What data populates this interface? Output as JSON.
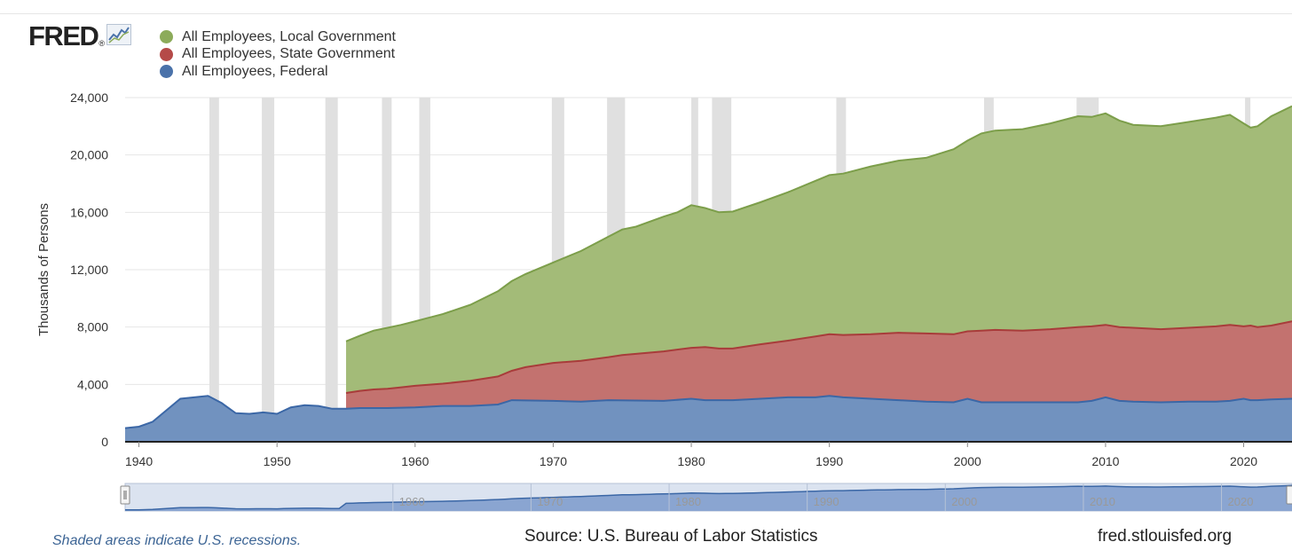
{
  "logo": {
    "text": "FRED",
    "icon": "fred-chart-icon"
  },
  "chart_data": {
    "type": "area",
    "stacked": true,
    "title": "",
    "ylabel": "Thousands of Persons",
    "xlabel": "",
    "xlim": [
      1939,
      2023.5
    ],
    "ylim": [
      0,
      24000
    ],
    "yticks": [
      "0",
      "4,000",
      "8,000",
      "12,000",
      "16,000",
      "20,000",
      "24,000"
    ],
    "ytick_values": [
      0,
      4000,
      8000,
      12000,
      16000,
      20000,
      24000
    ],
    "xticks": [
      "1940",
      "1950",
      "1960",
      "1970",
      "1980",
      "1990",
      "2000",
      "2010",
      "2020"
    ],
    "xtick_values": [
      1940,
      1950,
      1960,
      1970,
      1980,
      1990,
      2000,
      2010,
      2020
    ],
    "grid": true,
    "legend_position": "top-left",
    "series": [
      {
        "name": "All Employees, Local Government",
        "color": "#8cab5a",
        "cumulative_top": [
          [
            1955,
            7000
          ],
          [
            1956,
            7400
          ],
          [
            1957,
            7750
          ],
          [
            1958,
            7950
          ],
          [
            1959,
            8150
          ],
          [
            1960,
            8400
          ],
          [
            1962,
            8900
          ],
          [
            1964,
            9550
          ],
          [
            1966,
            10500
          ],
          [
            1967,
            11200
          ],
          [
            1968,
            11700
          ],
          [
            1970,
            12500
          ],
          [
            1972,
            13300
          ],
          [
            1974,
            14300
          ],
          [
            1975,
            14800
          ],
          [
            1976,
            15000
          ],
          [
            1978,
            15700
          ],
          [
            1979,
            16000
          ],
          [
            1980,
            16500
          ],
          [
            1981,
            16300
          ],
          [
            1982,
            16000
          ],
          [
            1983,
            16050
          ],
          [
            1985,
            16700
          ],
          [
            1987,
            17400
          ],
          [
            1989,
            18200
          ],
          [
            1990,
            18600
          ],
          [
            1991,
            18700
          ],
          [
            1993,
            19200
          ],
          [
            1995,
            19600
          ],
          [
            1997,
            19800
          ],
          [
            1999,
            20400
          ],
          [
            2000,
            21000
          ],
          [
            2001,
            21500
          ],
          [
            2002,
            21700
          ],
          [
            2004,
            21800
          ],
          [
            2006,
            22200
          ],
          [
            2008,
            22700
          ],
          [
            2009,
            22650
          ],
          [
            2010,
            22900
          ],
          [
            2011,
            22400
          ],
          [
            2012,
            22100
          ],
          [
            2014,
            22000
          ],
          [
            2016,
            22300
          ],
          [
            2018,
            22600
          ],
          [
            2019,
            22800
          ],
          [
            2020,
            22200
          ],
          [
            2020.5,
            21900
          ],
          [
            2021,
            22000
          ],
          [
            2022,
            22700
          ],
          [
            2023.5,
            23400
          ]
        ]
      },
      {
        "name": "All Employees, State Government",
        "color": "#b54a48",
        "cumulative_top": [
          [
            1955,
            3400
          ],
          [
            1956,
            3550
          ],
          [
            1957,
            3650
          ],
          [
            1958,
            3700
          ],
          [
            1959,
            3800
          ],
          [
            1960,
            3900
          ],
          [
            1962,
            4050
          ],
          [
            1964,
            4250
          ],
          [
            1966,
            4550
          ],
          [
            1967,
            4950
          ],
          [
            1968,
            5200
          ],
          [
            1970,
            5500
          ],
          [
            1972,
            5650
          ],
          [
            1974,
            5900
          ],
          [
            1975,
            6050
          ],
          [
            1978,
            6300
          ],
          [
            1980,
            6550
          ],
          [
            1981,
            6600
          ],
          [
            1982,
            6500
          ],
          [
            1983,
            6500
          ],
          [
            1985,
            6800
          ],
          [
            1987,
            7050
          ],
          [
            1989,
            7350
          ],
          [
            1990,
            7500
          ],
          [
            1991,
            7450
          ],
          [
            1993,
            7500
          ],
          [
            1995,
            7600
          ],
          [
            1997,
            7550
          ],
          [
            1999,
            7500
          ],
          [
            2000,
            7700
          ],
          [
            2001,
            7750
          ],
          [
            2002,
            7800
          ],
          [
            2004,
            7750
          ],
          [
            2006,
            7850
          ],
          [
            2008,
            8000
          ],
          [
            2009,
            8050
          ],
          [
            2010,
            8150
          ],
          [
            2011,
            8000
          ],
          [
            2012,
            7950
          ],
          [
            2014,
            7850
          ],
          [
            2016,
            7950
          ],
          [
            2018,
            8050
          ],
          [
            2019,
            8150
          ],
          [
            2020,
            8050
          ],
          [
            2020.5,
            8100
          ],
          [
            2021,
            8000
          ],
          [
            2022,
            8100
          ],
          [
            2023.5,
            8400
          ]
        ]
      },
      {
        "name": "All Employees, Federal",
        "color": "#4a72aa",
        "values": [
          [
            1939,
            950
          ],
          [
            1940,
            1050
          ],
          [
            1941,
            1400
          ],
          [
            1942,
            2200
          ],
          [
            1943,
            3000
          ],
          [
            1944,
            3100
          ],
          [
            1945,
            3200
          ],
          [
            1946,
            2700
          ],
          [
            1947,
            2000
          ],
          [
            1948,
            1950
          ],
          [
            1949,
            2050
          ],
          [
            1950,
            1950
          ],
          [
            1951,
            2400
          ],
          [
            1952,
            2550
          ],
          [
            1953,
            2500
          ],
          [
            1954,
            2300
          ],
          [
            1955,
            2300
          ],
          [
            1956,
            2350
          ],
          [
            1958,
            2350
          ],
          [
            1960,
            2400
          ],
          [
            1962,
            2500
          ],
          [
            1964,
            2500
          ],
          [
            1966,
            2600
          ],
          [
            1967,
            2900
          ],
          [
            1970,
            2850
          ],
          [
            1972,
            2800
          ],
          [
            1974,
            2900
          ],
          [
            1978,
            2850
          ],
          [
            1980,
            3000
          ],
          [
            1981,
            2900
          ],
          [
            1983,
            2900
          ],
          [
            1985,
            3000
          ],
          [
            1987,
            3100
          ],
          [
            1989,
            3100
          ],
          [
            1990,
            3200
          ],
          [
            1991,
            3100
          ],
          [
            1993,
            3000
          ],
          [
            1995,
            2900
          ],
          [
            1997,
            2800
          ],
          [
            1999,
            2750
          ],
          [
            2000,
            3000
          ],
          [
            2001,
            2750
          ],
          [
            2004,
            2750
          ],
          [
            2008,
            2750
          ],
          [
            2009,
            2850
          ],
          [
            2010,
            3100
          ],
          [
            2011,
            2850
          ],
          [
            2012,
            2800
          ],
          [
            2014,
            2750
          ],
          [
            2016,
            2800
          ],
          [
            2018,
            2800
          ],
          [
            2019,
            2850
          ],
          [
            2020,
            3000
          ],
          [
            2020.5,
            2900
          ],
          [
            2021,
            2900
          ],
          [
            2022,
            2950
          ],
          [
            2023.5,
            3000
          ]
        ]
      }
    ],
    "recessions": [
      [
        1945.1,
        1945.8
      ],
      [
        1948.9,
        1949.8
      ],
      [
        1953.5,
        1954.4
      ],
      [
        1957.6,
        1958.3
      ],
      [
        1960.3,
        1961.1
      ],
      [
        1969.9,
        1970.8
      ],
      [
        1973.9,
        1975.2
      ],
      [
        1980.0,
        1980.5
      ],
      [
        1981.5,
        1982.9
      ],
      [
        1990.5,
        1991.2
      ],
      [
        2001.2,
        2001.9
      ],
      [
        2007.9,
        2009.5
      ],
      [
        2020.1,
        2020.4
      ]
    ],
    "navigator": {
      "labels": [
        "1960",
        "1970",
        "1980",
        "1990",
        "2000",
        "2010",
        "2020"
      ],
      "label_values": [
        1960,
        1970,
        1980,
        1990,
        2000,
        2010,
        2020
      ]
    }
  },
  "footer": {
    "note": "Shaded areas indicate U.S. recessions.",
    "source": "Source: U.S. Bureau of Labor Statistics",
    "site": "fred.stlouisfed.org"
  }
}
